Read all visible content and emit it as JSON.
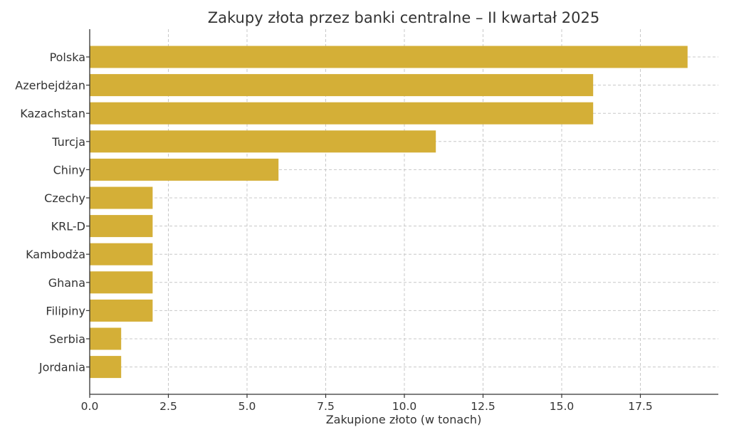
{
  "chart_data": {
    "type": "bar",
    "orientation": "horizontal",
    "title": "Zakupy złota przez banki centralne – II kwartał 2025",
    "xlabel": "Zakupione złoto (w tonach)",
    "ylabel": "",
    "categories": [
      "Polska",
      "Azerbejdżan",
      "Kazachstan",
      "Turcja",
      "Chiny",
      "Czechy",
      "KRL-D",
      "Kambodża",
      "Ghana",
      "Filipiny",
      "Serbia",
      "Jordania"
    ],
    "values": [
      19,
      16,
      16,
      11,
      6,
      2,
      2,
      2,
      2,
      2,
      1,
      1
    ],
    "xlim": [
      0,
      20
    ],
    "xticks": [
      0,
      2.5,
      5,
      7.5,
      10,
      12.5,
      15,
      17.5
    ],
    "xtick_labels": [
      "0.0",
      "2.5",
      "5.0",
      "7.5",
      "10.0",
      "12.5",
      "15.0",
      "17.5"
    ],
    "grid": true,
    "bar_color": "#D4AF37"
  }
}
